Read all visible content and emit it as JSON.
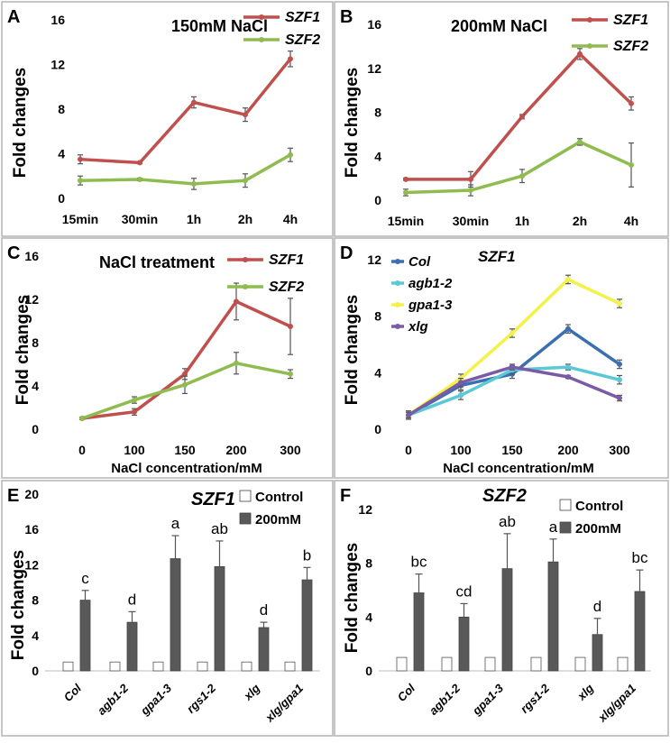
{
  "panel_colors": {
    "border": "#b4b4b4",
    "szf1": "#c0504d",
    "szf2": "#8fbc50",
    "col": "#3b6fb1",
    "agb1": "#5bc8d6",
    "gpa1": "#f2f24a",
    "xlg": "#7b5aa6",
    "bar_control": "#ffffff",
    "bar_treat": "#595959"
  },
  "chart_data": [
    {
      "panel": "A",
      "type": "line",
      "title": "150mM NaCl",
      "xlabel": "",
      "ylabel": "Fold changes",
      "categories": [
        "15min",
        "30min",
        "1h",
        "2h",
        "4h"
      ],
      "ylim": [
        0,
        16
      ],
      "yticks": [
        "0",
        "4",
        "8",
        "12",
        "16"
      ],
      "series": [
        {
          "name": "SZF1",
          "values": [
            3.5,
            3.2,
            8.6,
            7.5,
            12.5
          ],
          "errors": [
            0.4,
            0.1,
            0.5,
            0.6,
            0.7
          ]
        },
        {
          "name": "SZF2",
          "values": [
            1.6,
            1.7,
            1.3,
            1.6,
            3.9
          ],
          "errors": [
            0.4,
            0.1,
            0.5,
            0.6,
            0.6
          ]
        }
      ]
    },
    {
      "panel": "B",
      "type": "line",
      "title": "200mM NaCl",
      "xlabel": "",
      "ylabel": "Fold changes",
      "categories": [
        "15min",
        "30min",
        "1h",
        "2h",
        "4h"
      ],
      "ylim": [
        0,
        16
      ],
      "yticks": [
        "0",
        "4",
        "8",
        "12",
        "16"
      ],
      "series": [
        {
          "name": "SZF1",
          "values": [
            1.9,
            1.9,
            7.6,
            13.3,
            8.8
          ],
          "errors": [
            0.1,
            0.7,
            0.2,
            0.5,
            0.6
          ]
        },
        {
          "name": "SZF2",
          "values": [
            0.7,
            0.9,
            2.2,
            5.3,
            3.2
          ],
          "errors": [
            0.3,
            0.5,
            0.6,
            0.3,
            2.0
          ]
        }
      ]
    },
    {
      "panel": "C",
      "type": "line",
      "title": "NaCl treatment",
      "xlabel": "NaCl concentration/mM",
      "ylabel": "Fold changes",
      "categories": [
        "0",
        "100",
        "150",
        "200",
        "300"
      ],
      "ylim": [
        0,
        16
      ],
      "yticks": [
        "0",
        "4",
        "8",
        "12",
        "16"
      ],
      "series": [
        {
          "name": "SZF1",
          "values": [
            1.0,
            1.6,
            5.1,
            11.8,
            9.5
          ],
          "errors": [
            0.1,
            0.3,
            0.5,
            1.7,
            2.6
          ]
        },
        {
          "name": "SZF2",
          "values": [
            1.0,
            2.7,
            4.1,
            6.1,
            5.1
          ],
          "errors": [
            0.1,
            0.3,
            0.8,
            1.0,
            0.4
          ]
        }
      ]
    },
    {
      "panel": "D",
      "type": "line",
      "title": "SZF1",
      "xlabel": "NaCl concentration/mM",
      "ylabel": "Fold changes",
      "categories": [
        "0",
        "100",
        "150",
        "200",
        "300"
      ],
      "ylim": [
        0,
        12
      ],
      "yticks": [
        "0",
        "4",
        "8",
        "12"
      ],
      "series": [
        {
          "name": "Col",
          "values": [
            1.0,
            3.1,
            3.9,
            7.1,
            4.6
          ],
          "errors": [
            0.3,
            0.3,
            0.3,
            0.3,
            0.3
          ]
        },
        {
          "name": "agb1-2",
          "values": [
            1.0,
            2.4,
            4.2,
            4.4,
            3.5
          ],
          "errors": [
            0.2,
            0.3,
            0.3,
            0.2,
            0.3
          ]
        },
        {
          "name": "gpa1-3",
          "values": [
            1.0,
            3.6,
            6.8,
            10.6,
            8.9
          ],
          "errors": [
            0.2,
            0.3,
            0.3,
            0.3,
            0.3
          ]
        },
        {
          "name": "xlg",
          "values": [
            1.0,
            3.3,
            4.4,
            3.7,
            2.2
          ],
          "errors": [
            0.2,
            0.3,
            0.2,
            0.1,
            0.2
          ]
        }
      ]
    },
    {
      "panel": "E",
      "type": "bar",
      "title": "SZF1",
      "xlabel": "",
      "ylabel": "Fold changes",
      "categories": [
        "Col",
        "agb1-2",
        "gpa1-3",
        "rgs1-2",
        "xlg",
        "xlg/gpa1"
      ],
      "ylim": [
        0,
        20
      ],
      "yticks": [
        "0",
        "4",
        "8",
        "12",
        "16",
        "20"
      ],
      "series": [
        {
          "name": "Control",
          "values": [
            1,
            1,
            1,
            1,
            1,
            1
          ],
          "errors": [
            0,
            0,
            0,
            0,
            0,
            0
          ]
        },
        {
          "name": "200mM",
          "values": [
            8.0,
            5.5,
            12.7,
            11.8,
            4.9,
            10.3
          ],
          "errors": [
            1.1,
            1.2,
            2.6,
            2.9,
            0.6,
            1.4
          ]
        }
      ],
      "letters": [
        "c",
        "d",
        "a",
        "ab",
        "d",
        "b"
      ]
    },
    {
      "panel": "F",
      "type": "bar",
      "title": "SZF2",
      "xlabel": "",
      "ylabel": "Fold changes",
      "categories": [
        "Col",
        "agb1-2",
        "gpa1-3",
        "rgs1-2",
        "xlg",
        "xlg/gpa1"
      ],
      "ylim": [
        0,
        12
      ],
      "yticks": [
        "0",
        "4",
        "8",
        "12"
      ],
      "series": [
        {
          "name": "Control",
          "values": [
            1,
            1,
            1,
            1,
            1,
            1
          ],
          "errors": [
            0,
            0,
            0,
            0,
            0,
            0
          ]
        },
        {
          "name": "200mM",
          "values": [
            5.8,
            4.0,
            7.6,
            8.1,
            2.7,
            5.9
          ],
          "errors": [
            1.4,
            1.0,
            2.6,
            1.7,
            1.2,
            1.6
          ]
        }
      ],
      "letters": [
        "bc",
        "cd",
        "ab",
        "a",
        "d",
        "bc"
      ]
    }
  ]
}
